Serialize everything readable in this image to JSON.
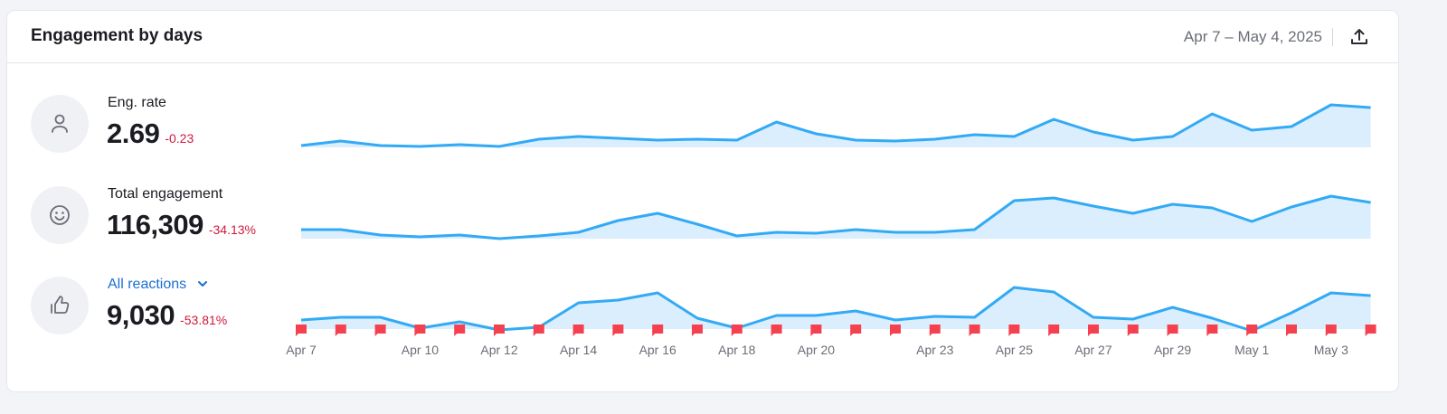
{
  "header": {
    "title": "Engagement by days",
    "date_range": "Apr 7 – May 4, 2025",
    "export_icon": "upload-icon"
  },
  "metrics": [
    {
      "label": "Eng. rate",
      "value": "2.69",
      "delta": "-0.23",
      "icon": "user-icon"
    },
    {
      "label": "Total engagement",
      "value": "116,309",
      "delta": "-34.13%",
      "icon": "smile-icon"
    },
    {
      "label": "All reactions",
      "value": "9,030",
      "delta": "-53.81%",
      "icon": "thumbs-up-icon",
      "dropdown": true
    }
  ],
  "colors": {
    "line": "#33aaf5",
    "fill": "#daeefd",
    "negative": "#d1183c",
    "link": "#1a6fd1",
    "marker": "#f5414f"
  },
  "chart_data": [
    {
      "type": "area",
      "title": "Eng. rate",
      "x_count": 28,
      "values": [
        2,
        7,
        2,
        1,
        3,
        1,
        9,
        12,
        10,
        8,
        9,
        8,
        28,
        15,
        8,
        7,
        9,
        14,
        12,
        31,
        17,
        8,
        12,
        37,
        19,
        23,
        47,
        44
      ],
      "ylim": [
        0,
        50
      ]
    },
    {
      "type": "area",
      "title": "Total engagement",
      "x_count": 28,
      "values": [
        10,
        10,
        4,
        2,
        4,
        0,
        3,
        7,
        20,
        28,
        16,
        3,
        7,
        6,
        10,
        7,
        7,
        10,
        42,
        45,
        36,
        28,
        38,
        34,
        19,
        35,
        47,
        40
      ],
      "ylim": [
        0,
        50
      ]
    },
    {
      "type": "area",
      "title": "All reactions",
      "x_count": 28,
      "values": [
        10,
        13,
        13,
        1,
        8,
        -1,
        2,
        29,
        32,
        40,
        12,
        1,
        15,
        15,
        20,
        10,
        14,
        13,
        46,
        41,
        13,
        11,
        24,
        12,
        -2,
        18,
        40,
        37
      ],
      "ylim": [
        0,
        50
      ],
      "markers": "every day"
    }
  ],
  "x_axis": {
    "first_day": "Apr 7",
    "last_day": "May 4",
    "tick_labels": [
      {
        "index": 0,
        "label": "Apr 7"
      },
      {
        "index": 3,
        "label": "Apr 10"
      },
      {
        "index": 5,
        "label": "Apr 12"
      },
      {
        "index": 7,
        "label": "Apr 14"
      },
      {
        "index": 9,
        "label": "Apr 16"
      },
      {
        "index": 11,
        "label": "Apr 18"
      },
      {
        "index": 13,
        "label": "Apr 20"
      },
      {
        "index": 16,
        "label": "Apr 23"
      },
      {
        "index": 18,
        "label": "Apr 25"
      },
      {
        "index": 20,
        "label": "Apr 27"
      },
      {
        "index": 22,
        "label": "Apr 29"
      },
      {
        "index": 24,
        "label": "May 1"
      },
      {
        "index": 26,
        "label": "May 3"
      }
    ]
  }
}
